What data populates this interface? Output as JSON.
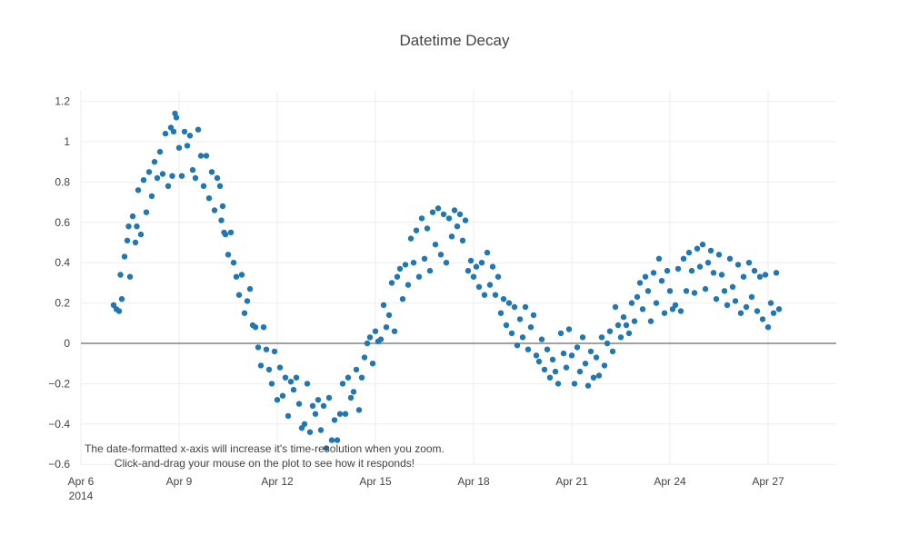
{
  "chart_data": {
    "type": "scatter",
    "title": "Datetime Decay",
    "xlabel": "",
    "ylabel": "",
    "x_range": [
      "2014-04-06",
      "2014-04-29"
    ],
    "ylim": [
      -0.62,
      1.23
    ],
    "grid": true,
    "legend": "none",
    "marker_color": "#1f77b4",
    "x_ticks": [
      {
        "value": "2014-04-06",
        "label": "Apr 6",
        "sublabel": "2014"
      },
      {
        "value": "2014-04-09",
        "label": "Apr 9"
      },
      {
        "value": "2014-04-12",
        "label": "Apr 12"
      },
      {
        "value": "2014-04-15",
        "label": "Apr 15"
      },
      {
        "value": "2014-04-18",
        "label": "Apr 18"
      },
      {
        "value": "2014-04-21",
        "label": "Apr 21"
      },
      {
        "value": "2014-04-24",
        "label": "Apr 24"
      },
      {
        "value": "2014-04-27",
        "label": "Apr 27"
      }
    ],
    "y_ticks": [
      {
        "value": 1.2,
        "label": "1.2"
      },
      {
        "value": 1.0,
        "label": "1"
      },
      {
        "value": 0.8,
        "label": "0.8"
      },
      {
        "value": 0.6,
        "label": "0.6"
      },
      {
        "value": 0.4,
        "label": "0.4"
      },
      {
        "value": 0.2,
        "label": "0.2"
      },
      {
        "value": 0.0,
        "label": "0"
      },
      {
        "value": -0.2,
        "label": "−0.2"
      },
      {
        "value": -0.4,
        "label": "−0.4"
      },
      {
        "value": -0.6,
        "label": "−0.6"
      }
    ],
    "points": [
      [
        "2014-04-07T00:00",
        0.19
      ],
      [
        "2014-04-07T02:00",
        0.17
      ],
      [
        "2014-04-07T04:00",
        0.16
      ],
      [
        "2014-04-07T05:00",
        0.34
      ],
      [
        "2014-04-07T06:00",
        0.22
      ],
      [
        "2014-04-07T08:00",
        0.43
      ],
      [
        "2014-04-07T10:00",
        0.51
      ],
      [
        "2014-04-07T11:00",
        0.58
      ],
      [
        "2014-04-07T12:00",
        0.33
      ],
      [
        "2014-04-07T14:00",
        0.63
      ],
      [
        "2014-04-07T16:00",
        0.5
      ],
      [
        "2014-04-07T17:00",
        0.58
      ],
      [
        "2014-04-07T18:00",
        0.76
      ],
      [
        "2014-04-07T20:00",
        0.54
      ],
      [
        "2014-04-07T22:00",
        0.81
      ],
      [
        "2014-04-08T00:00",
        0.65
      ],
      [
        "2014-04-08T02:00",
        0.85
      ],
      [
        "2014-04-08T04:00",
        0.73
      ],
      [
        "2014-04-08T06:00",
        0.9
      ],
      [
        "2014-04-08T08:00",
        0.82
      ],
      [
        "2014-04-08T10:00",
        0.95
      ],
      [
        "2014-04-08T12:00",
        0.84
      ],
      [
        "2014-04-08T14:00",
        1.04
      ],
      [
        "2014-04-08T16:00",
        0.78
      ],
      [
        "2014-04-08T18:00",
        1.07
      ],
      [
        "2014-04-08T19:00",
        0.83
      ],
      [
        "2014-04-08T20:00",
        1.05
      ],
      [
        "2014-04-08T21:00",
        1.14
      ],
      [
        "2014-04-08T22:00",
        1.12
      ],
      [
        "2014-04-09T00:00",
        0.97
      ],
      [
        "2014-04-09T02:00",
        0.83
      ],
      [
        "2014-04-09T04:00",
        1.05
      ],
      [
        "2014-04-09T06:00",
        0.98
      ],
      [
        "2014-04-09T08:00",
        1.03
      ],
      [
        "2014-04-09T10:00",
        0.86
      ],
      [
        "2014-04-09T12:00",
        0.82
      ],
      [
        "2014-04-09T14:00",
        1.06
      ],
      [
        "2014-04-09T16:00",
        0.93
      ],
      [
        "2014-04-09T18:00",
        0.78
      ],
      [
        "2014-04-09T20:00",
        0.93
      ],
      [
        "2014-04-09T22:00",
        0.72
      ],
      [
        "2014-04-10T00:00",
        0.85
      ],
      [
        "2014-04-10T02:00",
        0.66
      ],
      [
        "2014-04-10T04:00",
        0.82
      ],
      [
        "2014-04-10T06:00",
        0.78
      ],
      [
        "2014-04-10T07:00",
        0.61
      ],
      [
        "2014-04-10T08:00",
        0.68
      ],
      [
        "2014-04-10T09:00",
        0.55
      ],
      [
        "2014-04-10T10:00",
        0.54
      ],
      [
        "2014-04-10T12:00",
        0.44
      ],
      [
        "2014-04-10T14:00",
        0.55
      ],
      [
        "2014-04-10T16:00",
        0.4
      ],
      [
        "2014-04-10T18:00",
        0.33
      ],
      [
        "2014-04-10T20:00",
        0.24
      ],
      [
        "2014-04-10T22:00",
        0.34
      ],
      [
        "2014-04-11T00:00",
        0.15
      ],
      [
        "2014-04-11T02:00",
        0.21
      ],
      [
        "2014-04-11T04:00",
        0.27
      ],
      [
        "2014-04-11T06:00",
        0.09
      ],
      [
        "2014-04-11T08:00",
        0.08
      ],
      [
        "2014-04-11T10:00",
        -0.02
      ],
      [
        "2014-04-11T12:00",
        -0.11
      ],
      [
        "2014-04-11T14:00",
        0.08
      ],
      [
        "2014-04-11T16:00",
        -0.03
      ],
      [
        "2014-04-11T18:00",
        -0.13
      ],
      [
        "2014-04-11T20:00",
        -0.2
      ],
      [
        "2014-04-11T22:00",
        -0.04
      ],
      [
        "2014-04-12T00:00",
        -0.28
      ],
      [
        "2014-04-12T02:00",
        -0.12
      ],
      [
        "2014-04-12T04:00",
        -0.26
      ],
      [
        "2014-04-12T06:00",
        -0.17
      ],
      [
        "2014-04-12T08:00",
        -0.36
      ],
      [
        "2014-04-12T10:00",
        -0.19
      ],
      [
        "2014-04-12T12:00",
        -0.23
      ],
      [
        "2014-04-12T14:00",
        -0.17
      ],
      [
        "2014-04-12T16:00",
        -0.3
      ],
      [
        "2014-04-12T18:00",
        -0.42
      ],
      [
        "2014-04-12T20:00",
        -0.4
      ],
      [
        "2014-04-12T22:00",
        -0.2
      ],
      [
        "2014-04-13T00:00",
        -0.44
      ],
      [
        "2014-04-13T02:00",
        -0.31
      ],
      [
        "2014-04-13T04:00",
        -0.35
      ],
      [
        "2014-04-13T06:00",
        -0.28
      ],
      [
        "2014-04-13T08:00",
        -0.43
      ],
      [
        "2014-04-13T10:00",
        -0.31
      ],
      [
        "2014-04-13T12:00",
        -0.52
      ],
      [
        "2014-04-13T14:00",
        -0.27
      ],
      [
        "2014-04-13T16:00",
        -0.48
      ],
      [
        "2014-04-13T18:00",
        -0.38
      ],
      [
        "2014-04-13T20:00",
        -0.48
      ],
      [
        "2014-04-13T22:00",
        -0.35
      ],
      [
        "2014-04-14T00:00",
        -0.2
      ],
      [
        "2014-04-14T02:00",
        -0.35
      ],
      [
        "2014-04-14T04:00",
        -0.17
      ],
      [
        "2014-04-14T06:00",
        -0.27
      ],
      [
        "2014-04-14T08:00",
        -0.24
      ],
      [
        "2014-04-14T10:00",
        -0.13
      ],
      [
        "2014-04-14T12:00",
        -0.33
      ],
      [
        "2014-04-14T14:00",
        -0.17
      ],
      [
        "2014-04-14T16:00",
        -0.07
      ],
      [
        "2014-04-14T18:00",
        0.0
      ],
      [
        "2014-04-14T20:00",
        0.03
      ],
      [
        "2014-04-14T22:00",
        -0.1
      ],
      [
        "2014-04-15T00:00",
        0.06
      ],
      [
        "2014-04-15T02:00",
        0.01
      ],
      [
        "2014-04-15T04:00",
        0.02
      ],
      [
        "2014-04-15T06:00",
        0.19
      ],
      [
        "2014-04-15T08:00",
        0.08
      ],
      [
        "2014-04-15T10:00",
        0.14
      ],
      [
        "2014-04-15T12:00",
        0.3
      ],
      [
        "2014-04-15T14:00",
        0.06
      ],
      [
        "2014-04-15T16:00",
        0.33
      ],
      [
        "2014-04-15T18:00",
        0.37
      ],
      [
        "2014-04-15T20:00",
        0.22
      ],
      [
        "2014-04-15T22:00",
        0.39
      ],
      [
        "2014-04-16T00:00",
        0.29
      ],
      [
        "2014-04-16T02:00",
        0.52
      ],
      [
        "2014-04-16T04:00",
        0.4
      ],
      [
        "2014-04-16T06:00",
        0.56
      ],
      [
        "2014-04-16T08:00",
        0.33
      ],
      [
        "2014-04-16T10:00",
        0.62
      ],
      [
        "2014-04-16T12:00",
        0.42
      ],
      [
        "2014-04-16T14:00",
        0.57
      ],
      [
        "2014-04-16T16:00",
        0.36
      ],
      [
        "2014-04-16T18:00",
        0.65
      ],
      [
        "2014-04-16T20:00",
        0.49
      ],
      [
        "2014-04-16T22:00",
        0.67
      ],
      [
        "2014-04-17T00:00",
        0.44
      ],
      [
        "2014-04-17T02:00",
        0.64
      ],
      [
        "2014-04-17T04:00",
        0.4
      ],
      [
        "2014-04-17T06:00",
        0.62
      ],
      [
        "2014-04-17T08:00",
        0.53
      ],
      [
        "2014-04-17T10:00",
        0.66
      ],
      [
        "2014-04-17T12:00",
        0.58
      ],
      [
        "2014-04-17T14:00",
        0.64
      ],
      [
        "2014-04-17T16:00",
        0.51
      ],
      [
        "2014-04-17T18:00",
        0.61
      ],
      [
        "2014-04-17T20:00",
        0.36
      ],
      [
        "2014-04-17T22:00",
        0.41
      ],
      [
        "2014-04-18T00:00",
        0.33
      ],
      [
        "2014-04-18T02:00",
        0.38
      ],
      [
        "2014-04-18T04:00",
        0.28
      ],
      [
        "2014-04-18T06:00",
        0.4
      ],
      [
        "2014-04-18T08:00",
        0.24
      ],
      [
        "2014-04-18T10:00",
        0.45
      ],
      [
        "2014-04-18T12:00",
        0.29
      ],
      [
        "2014-04-18T14:00",
        0.38
      ],
      [
        "2014-04-18T16:00",
        0.24
      ],
      [
        "2014-04-18T18:00",
        0.33
      ],
      [
        "2014-04-18T20:00",
        0.15
      ],
      [
        "2014-04-18T22:00",
        0.22
      ],
      [
        "2014-04-19T00:00",
        0.09
      ],
      [
        "2014-04-19T02:00",
        0.2
      ],
      [
        "2014-04-19T04:00",
        0.05
      ],
      [
        "2014-04-19T06:00",
        0.18
      ],
      [
        "2014-04-19T08:00",
        -0.01
      ],
      [
        "2014-04-19T10:00",
        0.12
      ],
      [
        "2014-04-19T12:00",
        0.03
      ],
      [
        "2014-04-19T14:00",
        0.18
      ],
      [
        "2014-04-19T16:00",
        -0.03
      ],
      [
        "2014-04-19T18:00",
        0.08
      ],
      [
        "2014-04-19T20:00",
        0.14
      ],
      [
        "2014-04-19T22:00",
        -0.06
      ],
      [
        "2014-04-20T00:00",
        -0.09
      ],
      [
        "2014-04-20T02:00",
        0.02
      ],
      [
        "2014-04-20T04:00",
        -0.13
      ],
      [
        "2014-04-20T06:00",
        -0.03
      ],
      [
        "2014-04-20T08:00",
        -0.17
      ],
      [
        "2014-04-20T10:00",
        -0.08
      ],
      [
        "2014-04-20T12:00",
        -0.14
      ],
      [
        "2014-04-20T14:00",
        -0.2
      ],
      [
        "2014-04-20T16:00",
        0.05
      ],
      [
        "2014-04-20T18:00",
        -0.05
      ],
      [
        "2014-04-20T20:00",
        -0.12
      ],
      [
        "2014-04-20T22:00",
        0.07
      ],
      [
        "2014-04-21T00:00",
        -0.06
      ],
      [
        "2014-04-21T02:00",
        -0.2
      ],
      [
        "2014-04-21T04:00",
        -0.02
      ],
      [
        "2014-04-21T06:00",
        -0.14
      ],
      [
        "2014-04-21T08:00",
        0.03
      ],
      [
        "2014-04-21T10:00",
        -0.1
      ],
      [
        "2014-04-21T12:00",
        -0.21
      ],
      [
        "2014-04-21T14:00",
        -0.04
      ],
      [
        "2014-04-21T16:00",
        -0.17
      ],
      [
        "2014-04-21T18:00",
        -0.07
      ],
      [
        "2014-04-21T20:00",
        -0.16
      ],
      [
        "2014-04-21T22:00",
        0.03
      ],
      [
        "2014-04-22T00:00",
        -0.11
      ],
      [
        "2014-04-22T02:00",
        0.0
      ],
      [
        "2014-04-22T04:00",
        0.06
      ],
      [
        "2014-04-22T06:00",
        -0.04
      ],
      [
        "2014-04-22T08:00",
        0.18
      ],
      [
        "2014-04-22T10:00",
        0.09
      ],
      [
        "2014-04-22T12:00",
        0.03
      ],
      [
        "2014-04-22T14:00",
        0.13
      ],
      [
        "2014-04-22T16:00",
        0.09
      ],
      [
        "2014-04-22T18:00",
        0.05
      ],
      [
        "2014-04-22T20:00",
        0.2
      ],
      [
        "2014-04-22T22:00",
        0.11
      ],
      [
        "2014-04-23T00:00",
        0.23
      ],
      [
        "2014-04-23T02:00",
        0.3
      ],
      [
        "2014-04-23T04:00",
        0.17
      ],
      [
        "2014-04-23T06:00",
        0.33
      ],
      [
        "2014-04-23T08:00",
        0.26
      ],
      [
        "2014-04-23T10:00",
        0.11
      ],
      [
        "2014-04-23T12:00",
        0.35
      ],
      [
        "2014-04-23T14:00",
        0.2
      ],
      [
        "2014-04-23T16:00",
        0.42
      ],
      [
        "2014-04-23T18:00",
        0.31
      ],
      [
        "2014-04-23T20:00",
        0.15
      ],
      [
        "2014-04-23T22:00",
        0.36
      ],
      [
        "2014-04-24T00:00",
        0.26
      ],
      [
        "2014-04-24T02:00",
        0.17
      ],
      [
        "2014-04-24T04:00",
        0.19
      ],
      [
        "2014-04-24T06:00",
        0.37
      ],
      [
        "2014-04-24T08:00",
        0.16
      ],
      [
        "2014-04-24T10:00",
        0.42
      ],
      [
        "2014-04-24T12:00",
        0.26
      ],
      [
        "2014-04-24T14:00",
        0.45
      ],
      [
        "2014-04-24T16:00",
        0.36
      ],
      [
        "2014-04-24T18:00",
        0.25
      ],
      [
        "2014-04-24T20:00",
        0.47
      ],
      [
        "2014-04-24T22:00",
        0.38
      ],
      [
        "2014-04-25T00:00",
        0.49
      ],
      [
        "2014-04-25T02:00",
        0.27
      ],
      [
        "2014-04-25T04:00",
        0.4
      ],
      [
        "2014-04-25T06:00",
        0.46
      ],
      [
        "2014-04-25T08:00",
        0.35
      ],
      [
        "2014-04-25T10:00",
        0.22
      ],
      [
        "2014-04-25T12:00",
        0.44
      ],
      [
        "2014-04-25T14:00",
        0.34
      ],
      [
        "2014-04-25T16:00",
        0.26
      ],
      [
        "2014-04-25T18:00",
        0.19
      ],
      [
        "2014-04-25T20:00",
        0.42
      ],
      [
        "2014-04-25T22:00",
        0.28
      ],
      [
        "2014-04-26T00:00",
        0.21
      ],
      [
        "2014-04-26T02:00",
        0.39
      ],
      [
        "2014-04-26T04:00",
        0.15
      ],
      [
        "2014-04-26T06:00",
        0.33
      ],
      [
        "2014-04-26T08:00",
        0.18
      ],
      [
        "2014-04-26T10:00",
        0.4
      ],
      [
        "2014-04-26T12:00",
        0.23
      ],
      [
        "2014-04-26T14:00",
        0.36
      ],
      [
        "2014-04-26T16:00",
        0.16
      ],
      [
        "2014-04-26T18:00",
        0.33
      ],
      [
        "2014-04-26T20:00",
        0.12
      ],
      [
        "2014-04-26T22:00",
        0.34
      ],
      [
        "2014-04-27T00:00",
        0.08
      ],
      [
        "2014-04-27T02:00",
        0.2
      ],
      [
        "2014-04-27T04:00",
        0.15
      ],
      [
        "2014-04-27T06:00",
        0.35
      ],
      [
        "2014-04-27T08:00",
        0.17
      ]
    ]
  },
  "annotation": {
    "line1": "The date-formatted x-axis will increase it's time-resolution when you zoom.",
    "line2": "Click-and-drag your mouse on the plot to see how it responds!"
  }
}
